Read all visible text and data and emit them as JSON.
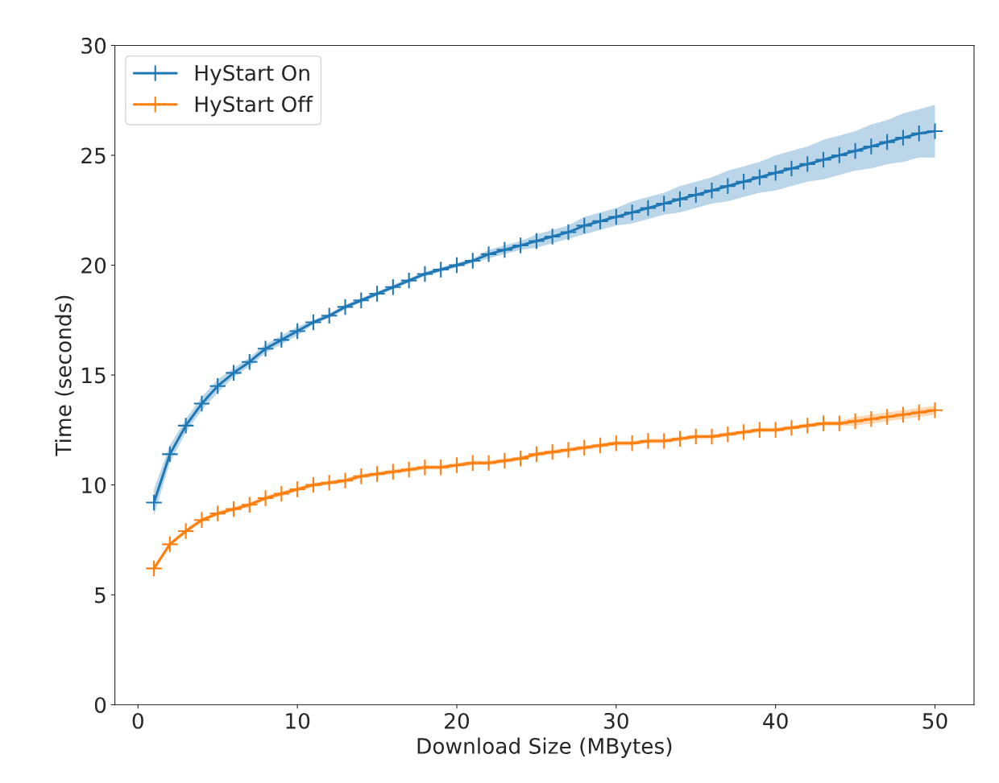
{
  "chart_data": {
    "type": "line",
    "xlabel": "Download Size (MBytes)",
    "ylabel": "Time (seconds)",
    "x": [
      1,
      2,
      3,
      4,
      5,
      6,
      7,
      8,
      9,
      10,
      11,
      12,
      13,
      14,
      15,
      16,
      17,
      18,
      19,
      20,
      21,
      22,
      23,
      24,
      25,
      26,
      27,
      28,
      29,
      30,
      31,
      32,
      33,
      34,
      35,
      36,
      37,
      38,
      39,
      40,
      41,
      42,
      43,
      44,
      45,
      46,
      47,
      48,
      49,
      50
    ],
    "series": [
      {
        "name": "HyStart On",
        "color": "#1f77b4",
        "values": [
          9.2,
          11.4,
          12.7,
          13.7,
          14.5,
          15.1,
          15.6,
          16.2,
          16.6,
          17.0,
          17.4,
          17.7,
          18.1,
          18.4,
          18.7,
          19.0,
          19.3,
          19.6,
          19.8,
          20.0,
          20.2,
          20.5,
          20.7,
          20.9,
          21.1,
          21.3,
          21.5,
          21.8,
          22.0,
          22.2,
          22.4,
          22.6,
          22.8,
          23.0,
          23.2,
          23.4,
          23.6,
          23.8,
          24.0,
          24.2,
          24.4,
          24.6,
          24.8,
          25.0,
          25.2,
          25.4,
          25.6,
          25.8,
          26.0,
          26.1
        ],
        "lower": [
          8.6,
          11.0,
          12.4,
          13.4,
          14.2,
          14.9,
          15.4,
          16.0,
          16.4,
          16.8,
          17.3,
          17.6,
          18.0,
          18.3,
          18.6,
          18.9,
          19.2,
          19.5,
          19.7,
          19.9,
          20.1,
          20.3,
          20.5,
          20.7,
          20.8,
          21.0,
          21.2,
          21.4,
          21.6,
          21.8,
          21.9,
          22.1,
          22.3,
          22.4,
          22.6,
          22.8,
          22.9,
          23.1,
          23.3,
          23.4,
          23.6,
          23.8,
          23.9,
          24.1,
          24.3,
          24.4,
          24.6,
          24.7,
          24.9,
          24.9
        ],
        "upper": [
          9.8,
          11.8,
          13.0,
          14.0,
          14.8,
          15.3,
          15.8,
          16.4,
          16.8,
          17.2,
          17.5,
          17.8,
          18.2,
          18.5,
          18.8,
          19.1,
          19.4,
          19.7,
          19.9,
          20.1,
          20.3,
          20.7,
          20.9,
          21.1,
          21.4,
          21.6,
          21.8,
          22.2,
          22.4,
          22.6,
          22.9,
          23.1,
          23.3,
          23.6,
          23.8,
          24.0,
          24.3,
          24.5,
          24.7,
          25.0,
          25.2,
          25.4,
          25.7,
          25.9,
          26.1,
          26.4,
          26.6,
          26.9,
          27.1,
          27.3
        ]
      },
      {
        "name": "HyStart Off",
        "color": "#ff7f0e",
        "values": [
          6.2,
          7.3,
          7.9,
          8.4,
          8.7,
          8.9,
          9.1,
          9.4,
          9.6,
          9.8,
          10.0,
          10.1,
          10.2,
          10.4,
          10.5,
          10.6,
          10.7,
          10.8,
          10.8,
          10.9,
          11.0,
          11.0,
          11.1,
          11.2,
          11.4,
          11.5,
          11.6,
          11.7,
          11.8,
          11.9,
          11.9,
          12.0,
          12.0,
          12.1,
          12.2,
          12.2,
          12.3,
          12.4,
          12.5,
          12.5,
          12.6,
          12.7,
          12.8,
          12.8,
          12.9,
          13.0,
          13.1,
          13.2,
          13.3,
          13.4
        ],
        "lower": [
          6.1,
          7.2,
          7.8,
          8.3,
          8.6,
          8.8,
          9.0,
          9.3,
          9.5,
          9.7,
          9.9,
          10.0,
          10.1,
          10.3,
          10.4,
          10.5,
          10.6,
          10.7,
          10.7,
          10.8,
          10.9,
          10.9,
          11.0,
          11.1,
          11.3,
          11.4,
          11.5,
          11.6,
          11.7,
          11.8,
          11.8,
          11.9,
          11.9,
          12.0,
          12.1,
          12.1,
          12.2,
          12.3,
          12.4,
          12.4,
          12.5,
          12.6,
          12.7,
          12.7,
          12.7,
          12.8,
          12.9,
          13.0,
          13.1,
          13.2
        ],
        "upper": [
          6.3,
          7.4,
          8.0,
          8.5,
          8.8,
          9.0,
          9.2,
          9.5,
          9.7,
          9.9,
          10.1,
          10.2,
          10.3,
          10.5,
          10.6,
          10.7,
          10.8,
          10.9,
          10.9,
          11.0,
          11.1,
          11.1,
          11.2,
          11.3,
          11.5,
          11.6,
          11.7,
          11.8,
          11.9,
          12.0,
          12.0,
          12.1,
          12.1,
          12.2,
          12.3,
          12.3,
          12.4,
          12.5,
          12.6,
          12.6,
          12.7,
          12.8,
          12.9,
          12.9,
          13.1,
          13.2,
          13.3,
          13.4,
          13.5,
          13.6
        ]
      }
    ],
    "xlim": [
      -1.45,
      52.45
    ],
    "xticks": [
      0,
      10,
      20,
      30,
      40,
      50
    ],
    "ylim": [
      0,
      30
    ],
    "yticks": [
      0,
      5,
      10,
      15,
      20,
      25,
      30
    ],
    "grid": false,
    "legend": "top left",
    "marker": "cross",
    "line_style": "solid"
  }
}
